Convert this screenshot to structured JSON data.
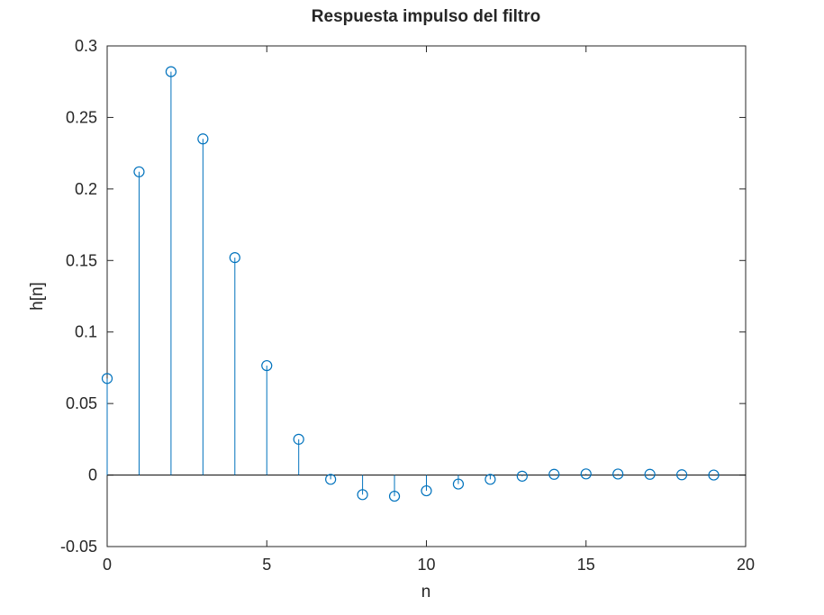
{
  "colors": {
    "series": "#0072bd",
    "axes": "#262626",
    "background": "#ffffff"
  },
  "chart_data": {
    "type": "stem",
    "title": "Respuesta impulso del filtro",
    "xlabel": "n",
    "ylabel": "h[n]",
    "xlim": [
      0,
      20
    ],
    "ylim": [
      -0.05,
      0.3
    ],
    "xticks": [
      0,
      5,
      10,
      15,
      20
    ],
    "xtick_labels": [
      "0",
      "5",
      "10",
      "15",
      "20"
    ],
    "yticks": [
      -0.05,
      0,
      0.05,
      0.1,
      0.15,
      0.2,
      0.25,
      0.3
    ],
    "ytick_labels": [
      "-0.05",
      "0",
      "0.05",
      "0.1",
      "0.15",
      "0.2",
      "0.25",
      "0.3"
    ],
    "grid": false,
    "box": true,
    "marker": "circle",
    "baseline": 0,
    "x": [
      0,
      1,
      2,
      3,
      4,
      5,
      6,
      7,
      8,
      9,
      10,
      11,
      12,
      13,
      14,
      15,
      16,
      17,
      18,
      19
    ],
    "values": [
      0.0675,
      0.212,
      0.282,
      0.235,
      0.152,
      0.0765,
      0.025,
      -0.003,
      -0.0137,
      -0.0148,
      -0.011,
      -0.0063,
      -0.003,
      -0.0008,
      0.0005,
      0.0008,
      0.0007,
      0.0005,
      0.0002,
      0.0
    ]
  }
}
